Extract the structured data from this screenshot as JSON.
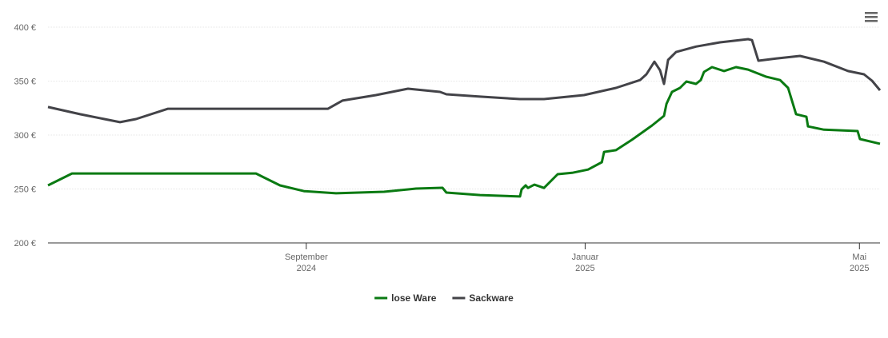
{
  "chart_data": {
    "type": "line",
    "xlim": [
      0,
      364
    ],
    "xticks": [
      {
        "value": 113,
        "label": "September 2024"
      },
      {
        "value": 235,
        "label": "Januar 2025"
      },
      {
        "value": 355,
        "label": "Mai 2025"
      }
    ],
    "ylim": [
      200,
      400
    ],
    "yticks": [
      {
        "value": 200,
        "label": "200 €"
      },
      {
        "value": 250,
        "label": "250 €"
      },
      {
        "value": 300,
        "label": "300 €"
      },
      {
        "value": 350,
        "label": "350 €"
      },
      {
        "value": 400,
        "label": "400 €"
      }
    ],
    "grid": true,
    "legend": "bottom",
    "series": [
      {
        "name": "lose Ware",
        "color": "#0a7a12",
        "x": [
          0,
          10.5,
          91,
          94.5,
          101.5,
          112,
          126,
          147,
          161,
          172.6,
          174.3,
          189,
          206.5,
          207.2,
          209,
          210,
          212.8,
          217,
          223,
          229.3,
          236.3,
          242.3,
          243.3,
          248.5,
          255.5,
          264.3,
          269.5,
          270.6,
          273,
          276.5,
          279.3,
          283.5,
          285.6,
          287,
          290.5,
          295.8,
          301,
          306.3,
          314.3,
          320.3,
          323.8,
          327.3,
          331.8,
          332.5,
          339.5,
          354.2,
          355.2,
          364
        ],
        "values": [
          253.3,
          264.4,
          264.4,
          260.7,
          253.3,
          248,
          246,
          247.4,
          250.4,
          251.1,
          246.7,
          244.4,
          243,
          249.6,
          253.3,
          251,
          254,
          251,
          263.7,
          265,
          268,
          274.8,
          284.4,
          286,
          295.6,
          308.9,
          317.8,
          328.9,
          340,
          343.7,
          349.6,
          347.4,
          351,
          358.5,
          363,
          359.3,
          363,
          360.7,
          354,
          351,
          343.7,
          319.3,
          317,
          308,
          305,
          303.7,
          296.3,
          291.9
        ]
      },
      {
        "name": "Sackware",
        "color": "#434348",
        "x": [
          0,
          14,
          31.5,
          38.5,
          52.5,
          122.5,
          128.8,
          143.5,
          157.5,
          171.5,
          174.3,
          189,
          206.5,
          217,
          234.5,
          248.5,
          259,
          261.8,
          265.3,
          267.8,
          269.5,
          271.3,
          274.8,
          283.5,
          294,
          306.3,
          308,
          310.8,
          318.5,
          329,
          339.5,
          350,
          357,
          360.5,
          364
        ],
        "values": [
          326,
          319.3,
          311.9,
          314.8,
          324.4,
          324.4,
          331.9,
          337,
          343,
          340,
          337.8,
          335.6,
          333.3,
          333.3,
          337,
          343.7,
          351,
          356.3,
          368,
          360,
          347.4,
          369.6,
          377,
          382,
          385.9,
          388.9,
          388,
          368.9,
          371,
          373.3,
          368,
          359.3,
          356.3,
          350.4,
          341.5
        ]
      }
    ]
  }
}
